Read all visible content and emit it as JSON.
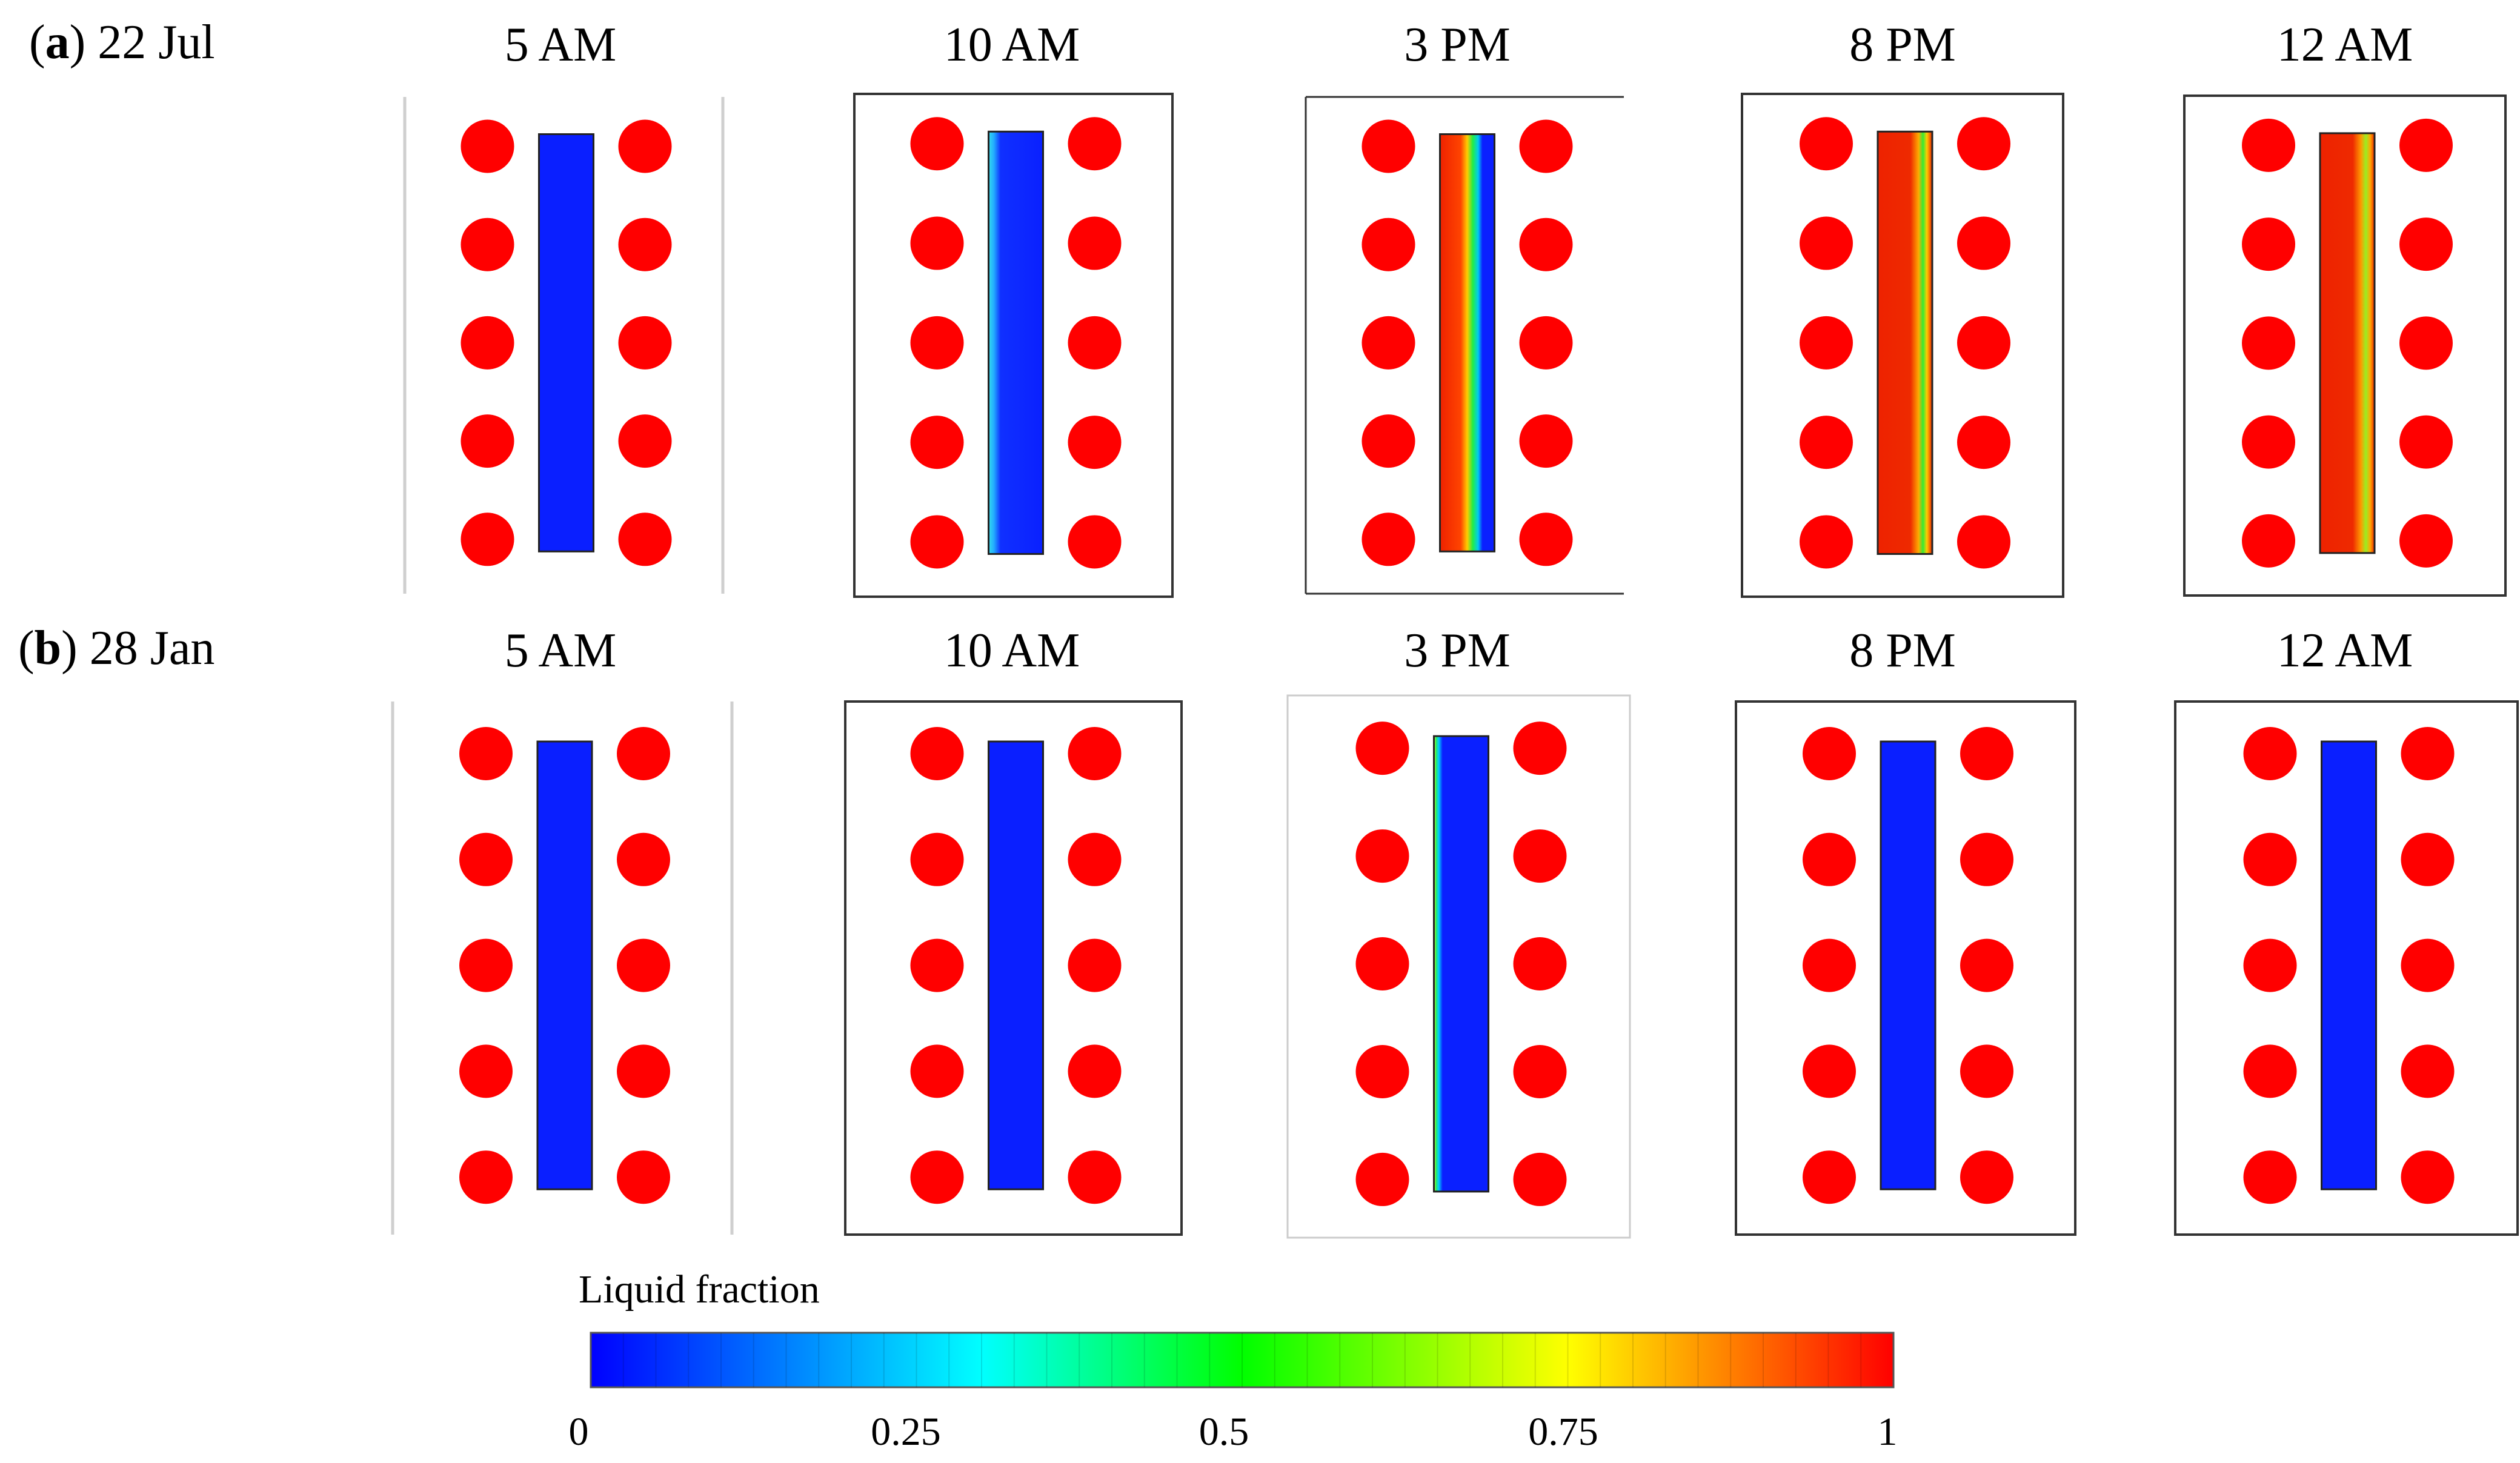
{
  "rows": [
    {
      "label_letter": "a",
      "label_date": "22 Jul",
      "panels": [
        {
          "time": "5 AM",
          "pcm_state": "solid"
        },
        {
          "time": "10 AM",
          "pcm_state": "melt-start"
        },
        {
          "time": "3 PM",
          "pcm_state": "mostly-liquid"
        },
        {
          "time": "8 PM",
          "pcm_state": "liquid"
        },
        {
          "time": "12 AM",
          "pcm_state": "liquid-cooling"
        }
      ]
    },
    {
      "label_letter": "b",
      "label_date": "28 Jan",
      "panels": [
        {
          "time": "5 AM",
          "pcm_state": "solid"
        },
        {
          "time": "10 AM",
          "pcm_state": "solid"
        },
        {
          "time": "3 PM",
          "pcm_state": "edge-melt"
        },
        {
          "time": "8 PM",
          "pcm_state": "solid"
        },
        {
          "time": "12 AM",
          "pcm_state": "solid"
        }
      ]
    }
  ],
  "colorbar": {
    "title": "Liquid fraction",
    "ticks": [
      "0",
      "0.25",
      "0.5",
      "0.75",
      "1"
    ],
    "range": [
      0,
      1
    ],
    "colors": [
      "#0000ff",
      "#00ffff",
      "#00ff00",
      "#ffff00",
      "#ff0000"
    ]
  },
  "colors": {
    "tube": "#ff0000",
    "solid": "#0a1fff",
    "liquid": "#ee2200",
    "border": "#333333"
  }
}
